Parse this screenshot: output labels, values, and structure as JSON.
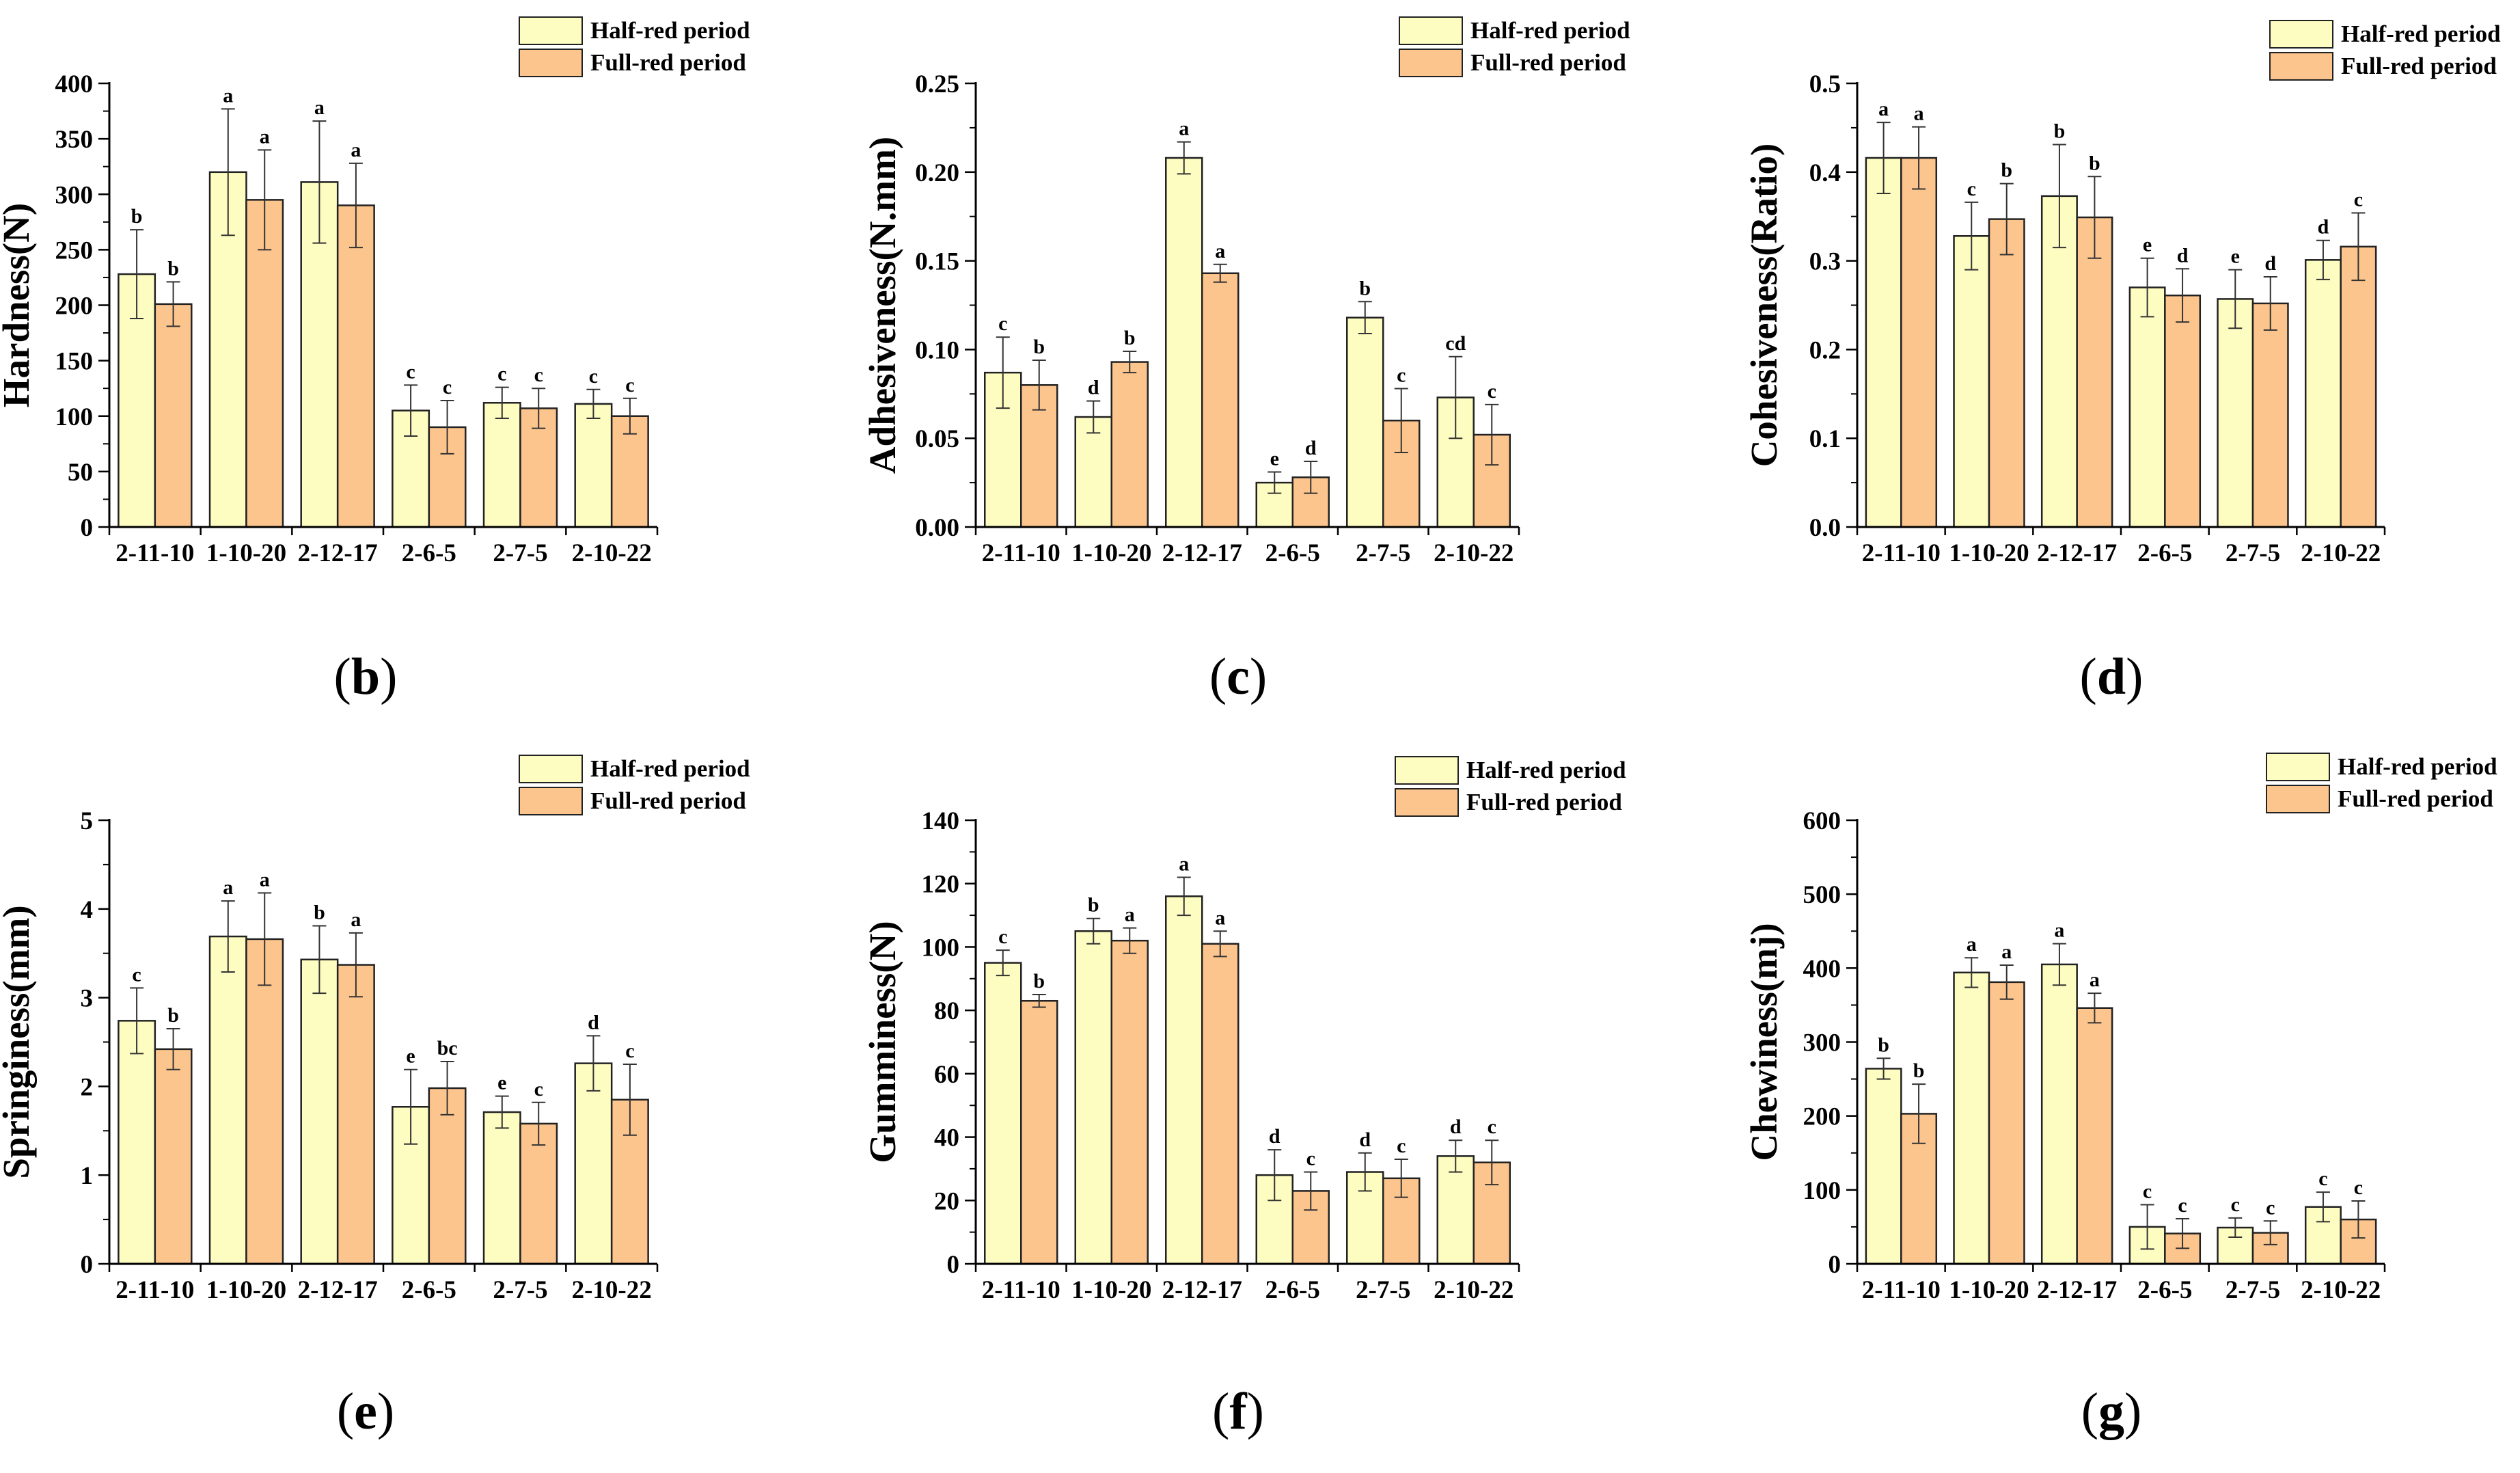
{
  "legend": {
    "half": "Half-red period",
    "full": "Full-red period"
  },
  "colors": {
    "half": "#fdfcc1",
    "full": "#fdc58e",
    "stroke": "#222222"
  },
  "chart_data": [
    {
      "type": "bar",
      "panel": "(b)",
      "ylabel": "Hardness(N)",
      "ylim": [
        0,
        400
      ],
      "yticks": [
        "0",
        "50",
        "100",
        "150",
        "200",
        "250",
        "300",
        "350",
        "400"
      ],
      "categories": [
        "2-11-10",
        "1-10-20",
        "2-12-17",
        "2-6-5",
        "2-7-5",
        "2-10-22"
      ],
      "series": [
        {
          "name": "Half-red period",
          "values": [
            228,
            320,
            311,
            105,
            112,
            111
          ],
          "errors": [
            40,
            57,
            55,
            23,
            14,
            13
          ],
          "labels": [
            "b",
            "a",
            "a",
            "c",
            "c",
            "c"
          ]
        },
        {
          "name": "Full-red period",
          "values": [
            201,
            295,
            290,
            90,
            107,
            100
          ],
          "errors": [
            20,
            45,
            38,
            24,
            18,
            16
          ],
          "labels": [
            "b",
            "a",
            "a",
            "c",
            "c",
            "c"
          ]
        }
      ]
    },
    {
      "type": "bar",
      "panel": "(c)",
      "ylabel": "Adhesiveness(N.mm)",
      "ylim": [
        0,
        0.25
      ],
      "yticks": [
        "0.00",
        "0.05",
        "0.10",
        "0.15",
        "0.20",
        "0.25"
      ],
      "categories": [
        "2-11-10",
        "1-10-20",
        "2-12-17",
        "2-6-5",
        "2-7-5",
        "2-10-22"
      ],
      "series": [
        {
          "name": "Half-red period",
          "values": [
            0.087,
            0.062,
            0.208,
            0.025,
            0.118,
            0.073
          ],
          "errors": [
            0.02,
            0.009,
            0.009,
            0.006,
            0.009,
            0.023
          ],
          "labels": [
            "c",
            "d",
            "a",
            "e",
            "b",
            "cd"
          ]
        },
        {
          "name": "Full-red period",
          "values": [
            0.08,
            0.093,
            0.143,
            0.028,
            0.06,
            0.052
          ],
          "errors": [
            0.014,
            0.006,
            0.005,
            0.009,
            0.018,
            0.017
          ],
          "labels": [
            "b",
            "b",
            "a",
            "d",
            "c",
            "c"
          ]
        }
      ]
    },
    {
      "type": "bar",
      "panel": "(d)",
      "ylabel": "Cohesiveness(Ratio)",
      "ylim": [
        0,
        0.5
      ],
      "yticks": [
        "0.0",
        "0.1",
        "0.2",
        "0.3",
        "0.4",
        "0.5"
      ],
      "categories": [
        "2-11-10",
        "1-10-20",
        "2-12-17",
        "2-6-5",
        "2-7-5",
        "2-10-22"
      ],
      "series": [
        {
          "name": "Half-red period",
          "values": [
            0.416,
            0.328,
            0.373,
            0.27,
            0.257,
            0.301
          ],
          "errors": [
            0.04,
            0.038,
            0.058,
            0.033,
            0.033,
            0.022
          ],
          "labels": [
            "a",
            "c",
            "b",
            "e",
            "e",
            "d"
          ]
        },
        {
          "name": "Full-red period",
          "values": [
            0.416,
            0.347,
            0.349,
            0.261,
            0.252,
            0.316
          ],
          "errors": [
            0.035,
            0.04,
            0.046,
            0.03,
            0.03,
            0.038
          ],
          "labels": [
            "a",
            "b",
            "b",
            "d",
            "d",
            "c"
          ]
        }
      ]
    },
    {
      "type": "bar",
      "panel": "(e)",
      "ylabel": "Springiness(mm)",
      "ylim": [
        0,
        5
      ],
      "yticks": [
        "0",
        "1",
        "2",
        "3",
        "4",
        "5"
      ],
      "categories": [
        "2-11-10",
        "1-10-20",
        "2-12-17",
        "2-6-5",
        "2-7-5",
        "2-10-22"
      ],
      "series": [
        {
          "name": "Half-red period",
          "values": [
            2.74,
            3.69,
            3.43,
            1.77,
            1.71,
            2.26
          ],
          "errors": [
            0.37,
            0.4,
            0.38,
            0.42,
            0.18,
            0.31
          ],
          "labels": [
            "c",
            "a",
            "b",
            "e",
            "e",
            "d"
          ]
        },
        {
          "name": "Full-red period",
          "values": [
            2.42,
            3.66,
            3.37,
            1.98,
            1.58,
            1.85
          ],
          "errors": [
            0.23,
            0.52,
            0.36,
            0.3,
            0.24,
            0.4
          ],
          "labels": [
            "b",
            "a",
            "a",
            "bc",
            "c",
            "c"
          ]
        }
      ]
    },
    {
      "type": "bar",
      "panel": "(f)",
      "ylabel": "Gumminess(N)",
      "ylim": [
        0,
        140
      ],
      "yticks": [
        "0",
        "20",
        "40",
        "60",
        "80",
        "100",
        "120",
        "140"
      ],
      "categories": [
        "2-11-10",
        "1-10-20",
        "2-12-17",
        "2-6-5",
        "2-7-5",
        "2-10-22"
      ],
      "series": [
        {
          "name": "Half-red period",
          "values": [
            95,
            105,
            116,
            28,
            29,
            34
          ],
          "errors": [
            4,
            4,
            6,
            8,
            6,
            5
          ],
          "labels": [
            "c",
            "b",
            "a",
            "d",
            "d",
            "d"
          ]
        },
        {
          "name": "Full-red period",
          "values": [
            83,
            102,
            101,
            23,
            27,
            32
          ],
          "errors": [
            2,
            4,
            4,
            6,
            6,
            7
          ],
          "labels": [
            "b",
            "a",
            "a",
            "c",
            "c",
            "c"
          ]
        }
      ]
    },
    {
      "type": "bar",
      "panel": "(g)",
      "ylabel": "Chewiness(mj)",
      "ylim": [
        0,
        600
      ],
      "yticks": [
        "0",
        "100",
        "200",
        "300",
        "400",
        "500",
        "600"
      ],
      "categories": [
        "2-11-10",
        "1-10-20",
        "2-12-17",
        "2-6-5",
        "2-7-5",
        "2-10-22"
      ],
      "series": [
        {
          "name": "Half-red period",
          "values": [
            264,
            394,
            405,
            50,
            49,
            77
          ],
          "errors": [
            14,
            20,
            28,
            30,
            13,
            20
          ],
          "labels": [
            "b",
            "a",
            "a",
            "c",
            "c",
            "c"
          ]
        },
        {
          "name": "Full-red period",
          "values": [
            203,
            381,
            346,
            41,
            42,
            60
          ],
          "errors": [
            40,
            23,
            20,
            20,
            16,
            25
          ],
          "labels": [
            "b",
            "a",
            "a",
            "c",
            "c",
            "c"
          ]
        }
      ]
    }
  ]
}
